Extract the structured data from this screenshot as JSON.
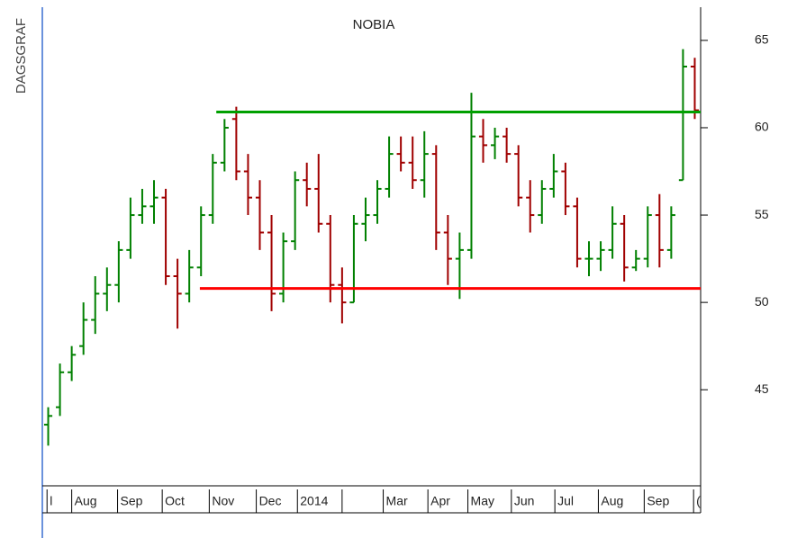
{
  "chart_data": {
    "type": "ohlc",
    "title": "NOBIA",
    "side_label": "DAGSGRAF",
    "open": [
      43,
      44,
      46,
      47.5,
      49,
      50.5,
      51,
      53,
      55,
      55.5,
      56,
      51.5,
      50.5,
      52,
      55,
      58,
      60.5,
      57.5,
      56,
      54,
      50.5,
      53.5,
      57,
      56.5,
      54.5,
      51,
      50,
      54.5,
      55,
      56.5,
      58.5,
      58,
      57,
      58.5,
      54,
      52.5,
      53,
      59.5,
      59,
      59.5,
      58.5,
      56,
      55,
      56.5,
      57.5,
      55.5,
      52.5,
      52.5,
      53,
      54.5,
      52,
      52.5,
      55,
      53,
      57,
      63.5
    ],
    "high": [
      44,
      46.5,
      47.5,
      50,
      51.5,
      52,
      53.5,
      56,
      56.5,
      57,
      56.5,
      52.5,
      53,
      55.5,
      58.5,
      60.5,
      61.2,
      58.5,
      57,
      55,
      54,
      57.5,
      58,
      58.5,
      55,
      52,
      55,
      56,
      57,
      59.5,
      59.5,
      59.5,
      59.8,
      59,
      55,
      54,
      62,
      60.5,
      60,
      60,
      59,
      57,
      57,
      58.5,
      58,
      56,
      53.5,
      53.5,
      55.5,
      55,
      53,
      55.5,
      56.2,
      55.5,
      64.5,
      64
    ],
    "low": [
      41.8,
      43.5,
      45.5,
      47,
      48.2,
      49.5,
      50,
      52.5,
      54.5,
      54.5,
      51,
      48.5,
      50,
      51.5,
      54.5,
      57.5,
      57,
      55,
      53,
      49.5,
      50,
      53,
      55.5,
      54,
      50,
      48.8,
      50,
      53.5,
      54.5,
      56,
      57.5,
      56.5,
      56,
      53,
      51,
      50.2,
      52.5,
      58,
      58.2,
      58,
      55.5,
      54,
      54.5,
      56,
      55,
      52,
      51.5,
      51.8,
      52.5,
      51.2,
      51.8,
      52,
      52,
      52.5,
      57,
      60.5
    ],
    "close": [
      43.5,
      46,
      47,
      49,
      50.5,
      51,
      53,
      55,
      55.5,
      56,
      51.5,
      50.5,
      52,
      55,
      58,
      60,
      57.5,
      56,
      54,
      50.5,
      53.5,
      57,
      56.5,
      54.5,
      51,
      50,
      54.5,
      55,
      56.5,
      58.5,
      58,
      57,
      58.5,
      54,
      52.5,
      53,
      59.5,
      59,
      59.5,
      58.5,
      56,
      55,
      56.5,
      57.5,
      55.5,
      52.5,
      52.5,
      53,
      54.5,
      52,
      52.5,
      55,
      53,
      55,
      63.5,
      61
    ],
    "up_color": "#008000",
    "down_color": "#a00000",
    "xlim": [
      0,
      56
    ],
    "x_labels": [
      {
        "label": "l",
        "start": 0.4
      },
      {
        "label": "Aug",
        "start": 2.5
      },
      {
        "label": "Sep",
        "start": 6.4
      },
      {
        "label": "Oct",
        "start": 10.2
      },
      {
        "label": "Nov",
        "start": 14.2
      },
      {
        "label": "Dec",
        "start": 18.2
      },
      {
        "label": "2014",
        "start": 21.7
      },
      {
        "label": null,
        "start": 25.5
      },
      {
        "label": "Mar",
        "start": 29.0
      },
      {
        "label": "Apr",
        "start": 32.8
      },
      {
        "label": "May",
        "start": 36.2
      },
      {
        "label": "Jun",
        "start": 39.9
      },
      {
        "label": "Jul",
        "start": 43.6
      },
      {
        "label": "Aug",
        "start": 47.3
      },
      {
        "label": "Sep",
        "start": 51.2
      },
      {
        "label": "(",
        "start": 55.4
      }
    ],
    "ylim": [
      39.5,
      66.9
    ],
    "yticks": [
      45,
      50,
      55,
      60,
      65
    ],
    "levels": [
      {
        "value": 60.9,
        "start": 14.8,
        "color": "#00a000"
      },
      {
        "value": 50.8,
        "start": 13.4,
        "color": "#ff0000"
      }
    ]
  }
}
